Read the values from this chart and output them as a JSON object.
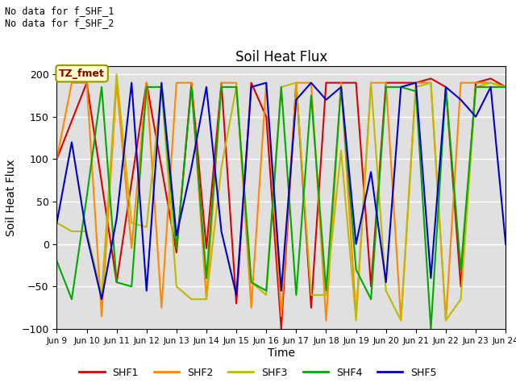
{
  "title": "Soil Heat Flux",
  "xlabel": "Time",
  "ylabel": "Soil Heat Flux",
  "ylim": [
    -100,
    210
  ],
  "yticks": [
    -100,
    -50,
    0,
    50,
    100,
    150,
    200
  ],
  "annotation_text": "No data for f_SHF_1\nNo data for f_SHF_2",
  "box_label": "TZ_fmet",
  "bg_color": "#e0e0e0",
  "fig_color": "#ffffff",
  "legend_entries": [
    "SHF1",
    "SHF2",
    "SHF3",
    "SHF4",
    "SHF5"
  ],
  "legend_colors": [
    "#dd0000",
    "#ff8800",
    "#bbbb00",
    "#00aa00",
    "#0000cc"
  ],
  "x_labels": [
    "Jun 9",
    "Jun 10",
    "Jun 11",
    "Jun 12",
    "Jun 13",
    "Jun 14",
    "Jun 15",
    "Jun 16",
    "Jun 17",
    "Jun 18",
    "Jun 19",
    "Jun 20",
    "Jun 21",
    "Jun 22",
    "Jun 23",
    "Jun 24"
  ],
  "shf1_x": [
    0,
    1,
    2,
    2.4,
    3,
    4,
    4.5,
    5,
    5.5,
    6,
    6.5,
    7,
    7.5,
    8,
    8.5,
    9,
    9.5,
    10,
    10.5,
    11,
    11.5,
    12,
    12.5,
    13,
    13.5,
    14,
    14.5,
    15
  ],
  "shf1_y": [
    100,
    190,
    -45,
    50,
    190,
    -10,
    190,
    -5,
    190,
    -70,
    190,
    150,
    -100,
    190,
    -75,
    190,
    190,
    190,
    -50,
    190,
    190,
    190,
    195,
    185,
    -50,
    190,
    195,
    185
  ],
  "shf2_x": [
    0,
    0.5,
    1,
    1.5,
    2,
    2.5,
    3,
    3.5,
    4,
    4.5,
    5,
    5.5,
    6,
    6.5,
    7,
    7.5,
    8,
    8.5,
    9,
    9.5,
    10,
    10.5,
    11,
    11.5,
    12,
    12.5,
    13,
    13.5,
    14,
    14.5,
    15
  ],
  "shf2_y": [
    100,
    190,
    190,
    -85,
    190,
    -5,
    190,
    -75,
    190,
    190,
    -65,
    190,
    190,
    -75,
    190,
    -85,
    190,
    190,
    -90,
    190,
    -85,
    190,
    190,
    -90,
    190,
    190,
    -90,
    190,
    190,
    190,
    185
  ],
  "shf3_x": [
    0,
    0.5,
    1,
    1.5,
    2,
    2.5,
    3,
    3.5,
    4,
    4.5,
    5,
    5.5,
    6,
    6.5,
    7,
    7.5,
    8,
    8.5,
    9,
    9.5,
    10,
    10.5,
    11,
    11.5,
    12,
    12.5,
    13,
    13.5,
    14,
    14.5,
    15
  ],
  "shf3_y": [
    25,
    15,
    15,
    -60,
    200,
    25,
    20,
    185,
    -50,
    -65,
    -65,
    90,
    185,
    -45,
    -60,
    185,
    190,
    -60,
    -60,
    110,
    -90,
    190,
    -55,
    -90,
    185,
    190,
    -90,
    -65,
    185,
    190,
    185
  ],
  "shf4_x": [
    0,
    0.5,
    1,
    1.5,
    2,
    2.5,
    3,
    3.5,
    4,
    4.5,
    5,
    5.5,
    6,
    6.5,
    7,
    7.5,
    8,
    8.5,
    9,
    9.5,
    10,
    10.5,
    11,
    11.5,
    12,
    12.5,
    13,
    13.5,
    14,
    14.5,
    15
  ],
  "shf4_y": [
    -20,
    -65,
    55,
    185,
    -45,
    -50,
    185,
    185,
    -5,
    185,
    -40,
    185,
    185,
    -45,
    -55,
    185,
    -60,
    175,
    -55,
    185,
    -30,
    -65,
    185,
    185,
    180,
    -100,
    185,
    -30,
    185,
    185,
    185
  ],
  "shf5_x": [
    0,
    0.5,
    1,
    1.5,
    2,
    2.5,
    3,
    3.5,
    4,
    4.5,
    5,
    5.5,
    6,
    6.5,
    7,
    7.5,
    8,
    8.5,
    9,
    9.5,
    10,
    10.5,
    11,
    11.5,
    12,
    12.5,
    13,
    13.5,
    14,
    14.5,
    15
  ],
  "shf5_y": [
    25,
    120,
    10,
    -65,
    30,
    190,
    -55,
    190,
    10,
    90,
    185,
    15,
    -60,
    185,
    190,
    -55,
    170,
    190,
    170,
    185,
    0,
    85,
    -45,
    185,
    190,
    -40,
    185,
    170,
    150,
    185,
    0
  ]
}
